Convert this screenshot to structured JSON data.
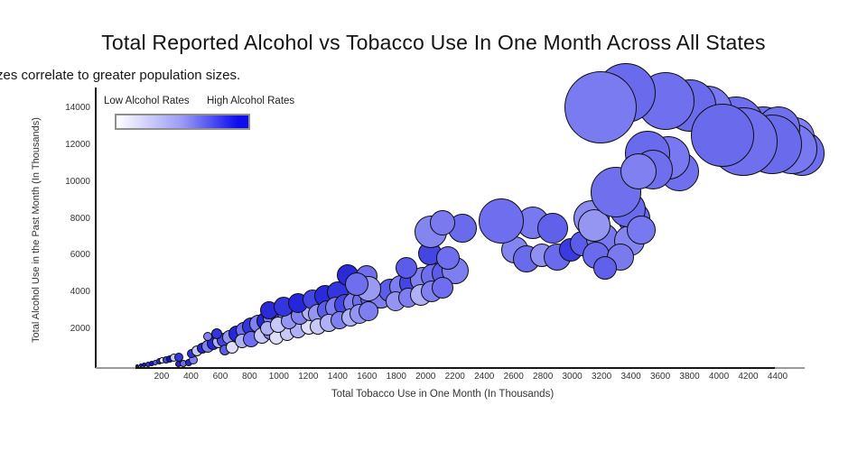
{
  "title": "Total Reported Alcohol vs Tobacco Use In One Month Across All States",
  "subtitle_visible": "zes correlate to greater population sizes.",
  "legend": {
    "low_label": "Low Alcohol Rates",
    "high_label": "High Alcohol Rates",
    "gradient_start_color": "#ffffff",
    "gradient_end_color": "#0d0dee",
    "meaning": "bubble fill: light = low alcohol rates, saturated blue = high alcohol rates"
  },
  "chart_data": {
    "type": "scatter",
    "title": "Total Reported Alcohol vs Tobacco Use In One Month Across All States",
    "xlabel": "Total Tobacco Use in One Month (In Thousands)",
    "ylabel": "Total Alcohol Use in the Past Month (In Thousands)",
    "x_ticks": [
      200,
      400,
      600,
      800,
      1000,
      1200,
      1400,
      1600,
      1800,
      2000,
      2200,
      2400,
      2600,
      2800,
      3000,
      3200,
      3400,
      3600,
      3800,
      4000,
      4200,
      4400
    ],
    "y_ticks": [
      2000,
      4000,
      6000,
      8000,
      10000,
      12000,
      14000
    ],
    "xlim": [
      0,
      4700
    ],
    "ylim": [
      0,
      15200
    ],
    "grid": false,
    "legend_position": "top-left",
    "size_meaning": "bubble size correlates to state population",
    "points": [
      {
        "x": 34,
        "y": 10,
        "r": 2,
        "c": "#1515cf"
      },
      {
        "x": 59,
        "y": 30,
        "r": 2,
        "c": "#2525da"
      },
      {
        "x": 83,
        "y": 60,
        "r": 2.5,
        "c": "#1515cf"
      },
      {
        "x": 108,
        "y": 100,
        "r": 3,
        "c": "#3535e0"
      },
      {
        "x": 132,
        "y": 150,
        "r": 3,
        "c": "#1515cf"
      },
      {
        "x": 157,
        "y": 200,
        "r": 3,
        "c": "#5c5cea"
      },
      {
        "x": 182,
        "y": 245,
        "r": 3.5,
        "c": "#2525da"
      },
      {
        "x": 206,
        "y": 294,
        "r": 3.5,
        "c": "#efeffd"
      },
      {
        "x": 231,
        "y": 343,
        "r": 4,
        "c": "#4545e4"
      },
      {
        "x": 256,
        "y": 392,
        "r": 4,
        "c": "#1515cf"
      },
      {
        "x": 286,
        "y": 441,
        "r": 4.5,
        "c": "#c8c8f8"
      },
      {
        "x": 317,
        "y": 490,
        "r": 5,
        "c": "#3535e0"
      },
      {
        "x": 311,
        "y": 100,
        "r": 3.5,
        "c": "#2525da"
      },
      {
        "x": 348,
        "y": 150,
        "r": 4,
        "c": "#6e6eef"
      },
      {
        "x": 385,
        "y": 200,
        "r": 4,
        "c": "#2525da"
      },
      {
        "x": 416,
        "y": 343,
        "r": 5,
        "c": "#8080f1"
      },
      {
        "x": 403,
        "y": 686,
        "r": 5,
        "c": "#3535e0"
      },
      {
        "x": 440,
        "y": 833,
        "r": 6,
        "c": "#c8c8f8"
      },
      {
        "x": 477,
        "y": 980,
        "r": 6,
        "c": "#2525da"
      },
      {
        "x": 514,
        "y": 1078,
        "r": 7,
        "c": "#8080f1"
      },
      {
        "x": 551,
        "y": 1225,
        "r": 7,
        "c": "#2525da"
      },
      {
        "x": 588,
        "y": 1323,
        "r": 7,
        "c": "#b0b0f6"
      },
      {
        "x": 625,
        "y": 1421,
        "r": 8,
        "c": "#4545e4"
      },
      {
        "x": 662,
        "y": 1568,
        "r": 8,
        "c": "#9494f3"
      },
      {
        "x": 631,
        "y": 882,
        "r": 6,
        "c": "#5c5cea"
      },
      {
        "x": 680,
        "y": 1029,
        "r": 7,
        "c": "#dedefa"
      },
      {
        "x": 576,
        "y": 1764,
        "r": 6,
        "c": "#3535e0"
      },
      {
        "x": 514,
        "y": 1617,
        "r": 5,
        "c": "#8080f1"
      },
      {
        "x": 711,
        "y": 1764,
        "r": 9,
        "c": "#2525da"
      },
      {
        "x": 760,
        "y": 1960,
        "r": 9,
        "c": "#6e6eef"
      },
      {
        "x": 810,
        "y": 2155,
        "r": 10,
        "c": "#3535e0"
      },
      {
        "x": 859,
        "y": 2302,
        "r": 10,
        "c": "#8080f1"
      },
      {
        "x": 908,
        "y": 2449,
        "r": 10,
        "c": "#2525da"
      },
      {
        "x": 957,
        "y": 2645,
        "r": 11,
        "c": "#7e7ef0"
      },
      {
        "x": 1007,
        "y": 2792,
        "r": 11,
        "c": "#4545e4"
      },
      {
        "x": 1056,
        "y": 2890,
        "r": 11,
        "c": "#9494f3"
      },
      {
        "x": 1105,
        "y": 2988,
        "r": 11,
        "c": "#5c5cea"
      },
      {
        "x": 748,
        "y": 1372,
        "r": 8,
        "c": "#b0b0f6"
      },
      {
        "x": 810,
        "y": 1470,
        "r": 9,
        "c": "#6e6eef"
      },
      {
        "x": 884,
        "y": 1666,
        "r": 9,
        "c": "#c8c8f8"
      },
      {
        "x": 945,
        "y": 1862,
        "r": 9,
        "c": "#8080f1"
      },
      {
        "x": 1019,
        "y": 2057,
        "r": 10,
        "c": "#b0b0f6"
      },
      {
        "x": 1081,
        "y": 2253,
        "r": 10,
        "c": "#7e7ef0"
      },
      {
        "x": 1142,
        "y": 2449,
        "r": 10,
        "c": "#c8c8f8"
      },
      {
        "x": 1204,
        "y": 2645,
        "r": 10,
        "c": "#8080f1"
      },
      {
        "x": 1155,
        "y": 3135,
        "r": 11,
        "c": "#3535e0"
      },
      {
        "x": 1216,
        "y": 3233,
        "r": 12,
        "c": "#6e6eef"
      },
      {
        "x": 982,
        "y": 1568,
        "r": 8,
        "c": "#dedefa"
      },
      {
        "x": 1056,
        "y": 1764,
        "r": 8,
        "c": "#c8c8f8"
      },
      {
        "x": 1130,
        "y": 1960,
        "r": 9,
        "c": "#b0b0f6"
      },
      {
        "x": 1204,
        "y": 2155,
        "r": 9,
        "c": "#dedefa"
      },
      {
        "x": 920,
        "y": 2057,
        "r": 8,
        "c": "#b0b0f6"
      },
      {
        "x": 994,
        "y": 2253,
        "r": 9,
        "c": "#c8c8f8"
      },
      {
        "x": 1068,
        "y": 2449,
        "r": 9,
        "c": "#9494f3"
      },
      {
        "x": 1142,
        "y": 2743,
        "r": 10,
        "c": "#8080f1"
      },
      {
        "x": 1216,
        "y": 2939,
        "r": 10,
        "c": "#b0b0f6"
      },
      {
        "x": 1290,
        "y": 3135,
        "r": 10,
        "c": "#7e7ef0"
      },
      {
        "x": 933,
        "y": 3037,
        "r": 10,
        "c": "#2a2ad8"
      },
      {
        "x": 1031,
        "y": 3233,
        "r": 11,
        "c": "#3535e0"
      },
      {
        "x": 1130,
        "y": 3429,
        "r": 11,
        "c": "#2525da"
      },
      {
        "x": 1228,
        "y": 3625,
        "r": 11,
        "c": "#4545e4"
      },
      {
        "x": 1315,
        "y": 3821,
        "r": 12,
        "c": "#2a2ad8"
      },
      {
        "x": 1401,
        "y": 4016,
        "r": 12,
        "c": "#3535e0"
      },
      {
        "x": 1265,
        "y": 2841,
        "r": 11,
        "c": "#9494f3"
      },
      {
        "x": 1327,
        "y": 3037,
        "r": 11,
        "c": "#5c5cea"
      },
      {
        "x": 1389,
        "y": 3184,
        "r": 12,
        "c": "#7e7ef0"
      },
      {
        "x": 1450,
        "y": 3331,
        "r": 12,
        "c": "#4545e4"
      },
      {
        "x": 1512,
        "y": 3429,
        "r": 12,
        "c": "#8080f1"
      },
      {
        "x": 1573,
        "y": 3527,
        "r": 12,
        "c": "#6e6eef"
      },
      {
        "x": 1635,
        "y": 3674,
        "r": 13,
        "c": "#5c5cea"
      },
      {
        "x": 1697,
        "y": 3772,
        "r": 13,
        "c": "#7e7ef0"
      },
      {
        "x": 1265,
        "y": 2155,
        "r": 9,
        "c": "#c8c8f8"
      },
      {
        "x": 1339,
        "y": 2351,
        "r": 10,
        "c": "#b0b0f6"
      },
      {
        "x": 1413,
        "y": 2498,
        "r": 10,
        "c": "#8080f1"
      },
      {
        "x": 1487,
        "y": 2645,
        "r": 10,
        "c": "#b0b0f6"
      },
      {
        "x": 1549,
        "y": 2841,
        "r": 11,
        "c": "#9494f3"
      },
      {
        "x": 1610,
        "y": 2988,
        "r": 11,
        "c": "#7e7ef0"
      },
      {
        "x": 1469,
        "y": 4947,
        "r": 12,
        "c": "#2a2ad8"
      },
      {
        "x": 1598,
        "y": 4898,
        "r": 12,
        "c": "#6e6eef"
      },
      {
        "x": 1758,
        "y": 4114,
        "r": 13,
        "c": "#5c5cea"
      },
      {
        "x": 1832,
        "y": 4310,
        "r": 13,
        "c": "#7e7ef0"
      },
      {
        "x": 1906,
        "y": 4506,
        "r": 14,
        "c": "#4545e4"
      },
      {
        "x": 1980,
        "y": 4702,
        "r": 14,
        "c": "#8080f1"
      },
      {
        "x": 2053,
        "y": 4898,
        "r": 14,
        "c": "#6e6eef"
      },
      {
        "x": 2127,
        "y": 5045,
        "r": 14,
        "c": "#5c5cea"
      },
      {
        "x": 2201,
        "y": 5192,
        "r": 15,
        "c": "#7e7ef0"
      },
      {
        "x": 1795,
        "y": 3527,
        "r": 11,
        "c": "#9494f3"
      },
      {
        "x": 1881,
        "y": 3723,
        "r": 11,
        "c": "#7e7ef0"
      },
      {
        "x": 1967,
        "y": 3870,
        "r": 12,
        "c": "#b0b0f6"
      },
      {
        "x": 2041,
        "y": 4065,
        "r": 12,
        "c": "#8080f1"
      },
      {
        "x": 2115,
        "y": 4261,
        "r": 12,
        "c": "#6e6eef"
      },
      {
        "x": 2029,
        "y": 6122,
        "r": 13,
        "c": "#4545e4"
      },
      {
        "x": 2152,
        "y": 5877,
        "r": 13,
        "c": "#6e6eef"
      },
      {
        "x": 1869,
        "y": 5339,
        "r": 12,
        "c": "#5c5cea"
      },
      {
        "x": 1610,
        "y": 4212,
        "r": 14,
        "c": "#9a9af2"
      },
      {
        "x": 1530,
        "y": 4457,
        "r": 13,
        "c": "#6e6eef"
      },
      {
        "x": 2035,
        "y": 7297,
        "r": 18,
        "c": "#8585f0"
      },
      {
        "x": 2251,
        "y": 7493,
        "r": 16,
        "c": "#6a6aec"
      },
      {
        "x": 2115,
        "y": 7787,
        "r": 14,
        "c": "#7a7aee"
      },
      {
        "x": 2731,
        "y": 7787,
        "r": 18,
        "c": "#7878f0"
      },
      {
        "x": 2866,
        "y": 7493,
        "r": 17,
        "c": "#6060ea"
      },
      {
        "x": 2608,
        "y": 6318,
        "r": 15,
        "c": "#8585f0"
      },
      {
        "x": 2688,
        "y": 5828,
        "r": 15,
        "c": "#6a6aec"
      },
      {
        "x": 2792,
        "y": 6024,
        "r": 13,
        "c": "#9090f2"
      },
      {
        "x": 2897,
        "y": 5926,
        "r": 15,
        "c": "#6a6aec"
      },
      {
        "x": 2989,
        "y": 6318,
        "r": 13,
        "c": "#3a3ae0"
      },
      {
        "x": 3069,
        "y": 6661,
        "r": 14,
        "c": "#5c5cea"
      },
      {
        "x": 2515,
        "y": 7885,
        "r": 25,
        "c": "#6e6eef"
      },
      {
        "x": 3131,
        "y": 8032,
        "r": 20,
        "c": "#8a8af0"
      },
      {
        "x": 3420,
        "y": 8032,
        "r": 18,
        "c": "#6a6aec"
      },
      {
        "x": 3205,
        "y": 6906,
        "r": 18,
        "c": "#7878f0"
      },
      {
        "x": 3390,
        "y": 6808,
        "r": 17,
        "c": "#8585f0"
      },
      {
        "x": 3162,
        "y": 6024,
        "r": 15,
        "c": "#6a6aec"
      },
      {
        "x": 3328,
        "y": 5926,
        "r": 15,
        "c": "#7a7aee"
      },
      {
        "x": 3223,
        "y": 5339,
        "r": 13,
        "c": "#6060ea"
      },
      {
        "x": 3150,
        "y": 7640,
        "r": 18,
        "c": "#9595f2"
      },
      {
        "x": 3377,
        "y": 8522,
        "r": 20,
        "c": "#6a6aec"
      },
      {
        "x": 3470,
        "y": 7395,
        "r": 16,
        "c": "#7878f0"
      },
      {
        "x": 3297,
        "y": 9453,
        "r": 28,
        "c": "#7070ee"
      },
      {
        "x": 3729,
        "y": 10579,
        "r": 22,
        "c": "#7070ee"
      },
      {
        "x": 3654,
        "y": 11314,
        "r": 24,
        "c": "#7878f0"
      },
      {
        "x": 3513,
        "y": 11559,
        "r": 25,
        "c": "#6a6aec"
      },
      {
        "x": 3550,
        "y": 10677,
        "r": 22,
        "c": "#6e6eef"
      },
      {
        "x": 3451,
        "y": 10579,
        "r": 20,
        "c": "#8080f1"
      },
      {
        "x": 4301,
        "y": 12636,
        "r": 30,
        "c": "#7070ee"
      },
      {
        "x": 4116,
        "y": 13126,
        "r": 31,
        "c": "#6e6eef"
      },
      {
        "x": 3919,
        "y": 13860,
        "r": 28,
        "c": "#7878f0"
      },
      {
        "x": 3802,
        "y": 14154,
        "r": 29,
        "c": "#6a6aec"
      },
      {
        "x": 3636,
        "y": 14399,
        "r": 32,
        "c": "#7070ee"
      },
      {
        "x": 3365,
        "y": 14840,
        "r": 33,
        "c": "#6a6aec"
      },
      {
        "x": 3193,
        "y": 14057,
        "r": 40,
        "c": "#7b7bf1"
      },
      {
        "x": 4566,
        "y": 11559,
        "r": 25,
        "c": "#6e6eef"
      },
      {
        "x": 4517,
        "y": 12440,
        "r": 22,
        "c": "#8080f1"
      },
      {
        "x": 4498,
        "y": 11803,
        "r": 28,
        "c": "#7878f0"
      },
      {
        "x": 4406,
        "y": 12930,
        "r": 24,
        "c": "#7070ee"
      },
      {
        "x": 4363,
        "y": 12048,
        "r": 33,
        "c": "#6a6aec"
      },
      {
        "x": 4166,
        "y": 12195,
        "r": 38,
        "c": "#7070ee"
      },
      {
        "x": 4024,
        "y": 12538,
        "r": 35,
        "c": "#6a6aec"
      }
    ]
  }
}
